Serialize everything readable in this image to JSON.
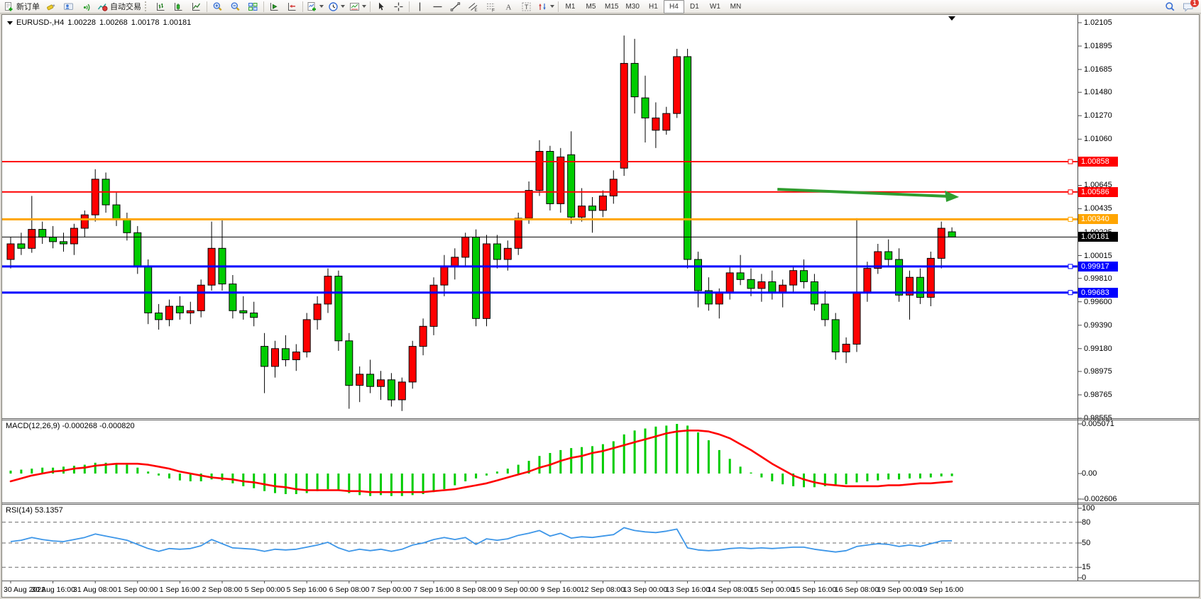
{
  "toolbar": {
    "new_order_label": "新订单",
    "autotrading_label": "自动交易",
    "timeframes": [
      "M1",
      "M5",
      "M15",
      "M30",
      "H1",
      "H4",
      "D1",
      "W1",
      "MN"
    ],
    "active_timeframe": "H4",
    "notification_count": "1"
  },
  "chart": {
    "ohlc_line": {
      "symbol_period": "EURUSD-,H4",
      "open": "1.00228",
      "high": "1.00268",
      "low": "1.00178",
      "close": "1.00181"
    },
    "macd_label": "MACD(12,26,9) -0.000268 -0.000820",
    "rsi_label": "RSI(14) 53.1357"
  },
  "chart_data": {
    "type": "candlestick+indicators",
    "symbol": "EURUSD-",
    "period": "H4",
    "colors": {
      "up_candle": "#ff0000",
      "down_candle": "#00cc00",
      "wick": "#000000",
      "macd_histogram": "#00cc00",
      "macd_signal": "#ff0000",
      "rsi_line": "#3d96e8",
      "level_red": "#ff0000",
      "level_orange": "#ffa500",
      "level_blue": "#0000ff",
      "current_price": "#000000",
      "arrow_green": "#2f9e2f"
    },
    "price_axis": {
      "min": 0.98555,
      "max": 1.02105,
      "ticks": [
        1.02105,
        1.01895,
        1.01685,
        1.0148,
        1.0127,
        1.0106,
        1.0085,
        1.00645,
        1.00435,
        1.00225,
        1.00015,
        0.9981,
        0.996,
        0.9939,
        0.9918,
        0.98975,
        0.98765,
        0.98555
      ]
    },
    "hlines": [
      {
        "price": 1.00858,
        "color": "#ff0000",
        "width": 2
      },
      {
        "price": 1.00586,
        "color": "#ff0000",
        "width": 2
      },
      {
        "price": 1.0034,
        "color": "#ffa500",
        "width": 3
      },
      {
        "price": 1.00181,
        "color": "#000000",
        "width": 1,
        "role": "current-price"
      },
      {
        "price": 0.99917,
        "color": "#0000ff",
        "width": 3
      },
      {
        "price": 0.99683,
        "color": "#0000ff",
        "width": 3
      }
    ],
    "candles": [
      [
        0.9998,
        1.0018,
        0.999,
        1.0012
      ],
      [
        1.0012,
        1.0022,
        1.0002,
        1.0008
      ],
      [
        1.0008,
        1.0055,
        1.0004,
        1.0025
      ],
      [
        1.0025,
        1.0032,
        1.0012,
        1.0018
      ],
      [
        1.0018,
        1.0028,
        1.0008,
        1.0014
      ],
      [
        1.0014,
        1.0022,
        1.0005,
        1.0012
      ],
      [
        1.0012,
        1.003,
        1.0002,
        1.0026
      ],
      [
        1.0026,
        1.0042,
        1.0018,
        1.0038
      ],
      [
        1.0038,
        1.0079,
        1.0032,
        1.007
      ],
      [
        1.007,
        1.0076,
        1.004,
        1.0047
      ],
      [
        1.0047,
        1.0058,
        1.0028,
        1.0034
      ],
      [
        1.0034,
        1.004,
        1.0015,
        1.0022
      ],
      [
        1.0022,
        1.0028,
        0.9985,
        0.9992
      ],
      [
        0.9992,
        0.9998,
        0.994,
        0.995
      ],
      [
        0.995,
        0.9958,
        0.9935,
        0.9944
      ],
      [
        0.9944,
        0.9962,
        0.9938,
        0.9956
      ],
      [
        0.9956,
        0.9965,
        0.9944,
        0.995
      ],
      [
        0.995,
        0.996,
        0.994,
        0.9952
      ],
      [
        0.9952,
        0.998,
        0.9946,
        0.9975
      ],
      [
        0.9975,
        1.0032,
        0.997,
        1.0008
      ],
      [
        1.0008,
        1.0033,
        0.997,
        0.9976
      ],
      [
        0.9976,
        0.9984,
        0.9945,
        0.9952
      ],
      [
        0.9952,
        0.9965,
        0.9944,
        0.995
      ],
      [
        0.995,
        0.996,
        0.9938,
        0.9946
      ],
      [
        0.992,
        0.9932,
        0.9878,
        0.9902
      ],
      [
        0.9902,
        0.9925,
        0.9892,
        0.9918
      ],
      [
        0.9918,
        0.993,
        0.9902,
        0.9908
      ],
      [
        0.9908,
        0.9922,
        0.9898,
        0.9915
      ],
      [
        0.9915,
        0.995,
        0.991,
        0.9944
      ],
      [
        0.9944,
        0.9965,
        0.9935,
        0.9958
      ],
      [
        0.9958,
        0.999,
        0.995,
        0.9983
      ],
      [
        0.9983,
        0.9988,
        0.9916,
        0.9925
      ],
      [
        0.9925,
        0.9932,
        0.9864,
        0.9885
      ],
      [
        0.9885,
        0.9902,
        0.987,
        0.9895
      ],
      [
        0.9895,
        0.9908,
        0.9878,
        0.9884
      ],
      [
        0.9884,
        0.9898,
        0.9872,
        0.989
      ],
      [
        0.989,
        0.9896,
        0.9866,
        0.9872
      ],
      [
        0.9872,
        0.9892,
        0.9862,
        0.9888
      ],
      [
        0.9888,
        0.9925,
        0.9882,
        0.992
      ],
      [
        0.992,
        0.9945,
        0.9912,
        0.9938
      ],
      [
        0.9938,
        0.9982,
        0.993,
        0.9975
      ],
      [
        0.9975,
        1.0002,
        0.9965,
        0.9992
      ],
      [
        0.9992,
        1.0008,
        0.998,
        1.0
      ],
      [
        1.0,
        1.0022,
        0.9992,
        1.0018
      ],
      [
        1.0018,
        1.0025,
        0.9938,
        0.9945
      ],
      [
        0.9945,
        1.002,
        0.9938,
        1.0012
      ],
      [
        1.0012,
        1.002,
        0.999,
        0.9998
      ],
      [
        0.9998,
        1.0015,
        0.9988,
        1.0008
      ],
      [
        1.0008,
        1.004,
        1.0002,
        1.0035
      ],
      [
        1.0035,
        1.0068,
        1.003,
        1.006
      ],
      [
        1.006,
        1.0105,
        1.0055,
        1.0095
      ],
      [
        1.0095,
        1.01,
        1.0042,
        1.0048
      ],
      [
        1.0048,
        1.0098,
        1.004,
        1.009
      ],
      [
        1.0092,
        1.0113,
        1.003,
        1.0036
      ],
      [
        1.0036,
        1.0062,
        1.0032,
        1.0046
      ],
      [
        1.0046,
        1.0054,
        1.0022,
        1.0042
      ],
      [
        1.0042,
        1.006,
        1.0036,
        1.0055
      ],
      [
        1.0055,
        1.0078,
        1.0048,
        1.007
      ],
      [
        1.008,
        1.0199,
        1.0073,
        1.0174
      ],
      [
        1.0174,
        1.0196,
        1.0129,
        1.0144
      ],
      [
        1.0143,
        1.0163,
        1.0103,
        1.0125
      ],
      [
        1.0114,
        1.0139,
        1.0098,
        1.0125
      ],
      [
        1.0114,
        1.0135,
        1.011,
        1.0129
      ],
      [
        1.0129,
        1.0187,
        1.0125,
        1.018
      ],
      [
        1.018,
        1.0187,
        0.999,
        0.9998
      ],
      [
        0.9998,
        1.0005,
        0.9955,
        0.997
      ],
      [
        0.997,
        0.9982,
        0.9952,
        0.9958
      ],
      [
        0.9958,
        0.9972,
        0.9945,
        0.9968
      ],
      [
        0.9968,
        0.9992,
        0.9962,
        0.9986
      ],
      [
        0.9986,
        1.0002,
        0.9975,
        0.998
      ],
      [
        0.998,
        0.999,
        0.9965,
        0.9972
      ],
      [
        0.9972,
        0.9985,
        0.996,
        0.9978
      ],
      [
        0.9978,
        0.9988,
        0.9962,
        0.9968
      ],
      [
        0.9968,
        0.998,
        0.9955,
        0.9975
      ],
      [
        0.9975,
        0.9992,
        0.9968,
        0.9988
      ],
      [
        0.9988,
        0.9998,
        0.9972,
        0.9978
      ],
      [
        0.9978,
        0.9985,
        0.9952,
        0.9958
      ],
      [
        0.9958,
        0.997,
        0.9938,
        0.9944
      ],
      [
        0.9944,
        0.995,
        0.9908,
        0.9915
      ],
      [
        0.9915,
        0.9928,
        0.9905,
        0.9922
      ],
      [
        0.9922,
        1.0035,
        0.9915,
        0.9968
      ],
      [
        0.9968,
        0.9996,
        0.996,
        0.999
      ],
      [
        0.999,
        1.0012,
        0.9985,
        1.0005
      ],
      [
        1.0005,
        1.0016,
        0.9992,
        0.9998
      ],
      [
        0.9998,
        1.0008,
        0.996,
        0.9966
      ],
      [
        0.9966,
        0.9988,
        0.9944,
        0.9982
      ],
      [
        0.9982,
        0.999,
        0.9958,
        0.9964
      ],
      [
        0.9964,
        1.0005,
        0.9956,
        0.9999
      ],
      [
        0.9999,
        1.0032,
        0.999,
        1.0026
      ],
      [
        1.00228,
        1.00268,
        1.00178,
        1.00181
      ]
    ],
    "macd": {
      "label": "MACD(12,26,9)",
      "current_main": -0.000268,
      "current_signal": -0.00082,
      "axis": [
        {
          "label": "0.005071",
          "value": 0.005071
        },
        {
          "label": "0.00",
          "value": 0
        },
        {
          "label": "-0.002606",
          "value": -0.002606
        }
      ],
      "main": [
        0.0003,
        0.0004,
        0.0005,
        0.0006,
        0.0006,
        0.0007,
        0.0008,
        0.0009,
        0.0011,
        0.0011,
        0.001,
        0.0009,
        0.0006,
        0.0002,
        -0.0002,
        -0.0005,
        -0.0007,
        -0.0008,
        -0.0008,
        -0.0006,
        -0.0007,
        -0.001,
        -0.0013,
        -0.0015,
        -0.0018,
        -0.002,
        -0.0021,
        -0.0021,
        -0.002,
        -0.0018,
        -0.0016,
        -0.0017,
        -0.002,
        -0.0022,
        -0.0023,
        -0.0022,
        -0.0023,
        -0.0023,
        -0.0022,
        -0.0021,
        -0.0019,
        -0.0016,
        -0.0012,
        -0.0008,
        -0.0005,
        -0.0002,
        0.0002,
        0.0005,
        0.0009,
        0.0013,
        0.0018,
        0.0021,
        0.0024,
        0.0026,
        0.0027,
        0.0028,
        0.003,
        0.0033,
        0.004,
        0.0044,
        0.0046,
        0.0048,
        0.0049,
        0.005071,
        0.0049,
        0.0042,
        0.0034,
        0.0024,
        0.0015,
        0.0007,
        0.0001,
        -0.0004,
        -0.0008,
        -0.0011,
        -0.0013,
        -0.0014,
        -0.0014,
        -0.0013,
        -0.0012,
        -0.0011,
        -0.0009,
        -0.0008,
        -0.0007,
        -0.0006,
        -0.0006,
        -0.0005,
        -0.0005,
        -0.0004,
        -0.0003,
        -0.000268
      ],
      "signal": [
        -0.0008,
        -0.0005,
        -0.0002,
        0.0,
        0.0002,
        0.0003,
        0.0005,
        0.0006,
        0.0008,
        0.0009,
        0.001,
        0.001,
        0.001,
        0.0009,
        0.0007,
        0.0005,
        0.0002,
        0.0,
        -0.0002,
        -0.0004,
        -0.0005,
        -0.0006,
        -0.0008,
        -0.0009,
        -0.0011,
        -0.0013,
        -0.0014,
        -0.0016,
        -0.0017,
        -0.0017,
        -0.0017,
        -0.0017,
        -0.0018,
        -0.0018,
        -0.0019,
        -0.0019,
        -0.0019,
        -0.0019,
        -0.0019,
        -0.0019,
        -0.0018,
        -0.0017,
        -0.0016,
        -0.0014,
        -0.0012,
        -0.001,
        -0.0007,
        -0.0004,
        -0.0001,
        0.0002,
        0.0006,
        0.0009,
        0.0013,
        0.0016,
        0.0018,
        0.0021,
        0.0023,
        0.0026,
        0.0029,
        0.0032,
        0.0035,
        0.0038,
        0.0041,
        0.0043,
        0.0044,
        0.0044,
        0.0043,
        0.004,
        0.0036,
        0.003,
        0.0024,
        0.0017,
        0.001,
        0.0004,
        -0.0002,
        -0.0006,
        -0.0009,
        -0.0011,
        -0.0012,
        -0.0013,
        -0.0013,
        -0.0013,
        -0.0013,
        -0.0012,
        -0.0012,
        -0.0011,
        -0.001,
        -0.001,
        -0.0009,
        -0.00082
      ]
    },
    "rsi": {
      "label": "RSI(14)",
      "current": 53.1357,
      "levels": [
        80,
        50,
        15
      ],
      "axis": [
        {
          "label": "100",
          "value": 100
        },
        {
          "label": "80",
          "value": 80
        },
        {
          "label": "50",
          "value": 50
        },
        {
          "label": "15",
          "value": 15
        },
        {
          "label": "0",
          "value": 0
        }
      ],
      "values": [
        52,
        54,
        58,
        55,
        53,
        52,
        55,
        58,
        63,
        60,
        57,
        54,
        48,
        42,
        38,
        42,
        41,
        42,
        46,
        55,
        49,
        43,
        42,
        41,
        38,
        41,
        40,
        41,
        44,
        47,
        51,
        43,
        38,
        41,
        39,
        41,
        38,
        41,
        47,
        50,
        55,
        58,
        55,
        58,
        48,
        56,
        54,
        56,
        61,
        64,
        68,
        60,
        64,
        57,
        59,
        58,
        60,
        62,
        72,
        68,
        66,
        65,
        67,
        70,
        43,
        40,
        39,
        40,
        42,
        43,
        42,
        43,
        42,
        43,
        44,
        44,
        41,
        39,
        37,
        39,
        45,
        47,
        49,
        48,
        45,
        47,
        45,
        49,
        53,
        53.1357
      ]
    },
    "time_axis": {
      "bars_per_label": 4,
      "labels": [
        "30 Aug 2022",
        "30 Aug 16:00",
        "31 Aug 08:00",
        "1 Sep 00:00",
        "1 Sep 16:00",
        "2 Sep 08:00",
        "5 Sep 00:00",
        "5 Sep 16:00",
        "6 Sep 08:00",
        "7 Sep 00:00",
        "7 Sep 16:00",
        "8 Sep 08:00",
        "9 Sep 00:00",
        "9 Sep 16:00",
        "12 Sep 08:00",
        "13 Sep 00:00",
        "13 Sep 16:00",
        "14 Sep 08:00",
        "15 Sep 00:00",
        "15 Sep 16:00",
        "16 Sep 08:00",
        "19 Sep 00:00",
        "19 Sep 16:00"
      ]
    },
    "arrow_annotation": {
      "bar_from": 72.5,
      "price_from": 1.0061,
      "bar_to": 89,
      "price_to": 1.00547
    }
  }
}
